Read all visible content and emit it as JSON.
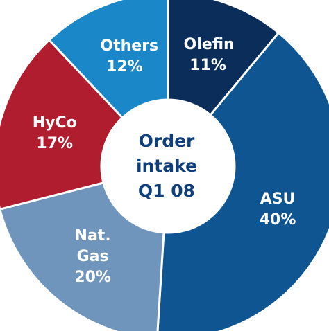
{
  "chart_data": {
    "type": "donut",
    "title": "Order intake Q1 08",
    "categories": [
      "Olefin",
      "ASU",
      "Nat. Gas",
      "HyCo",
      "Others"
    ],
    "values": [
      11,
      40,
      20,
      17,
      12
    ],
    "value_labels": [
      "11%",
      "40%",
      "20%",
      "17%",
      "12%"
    ],
    "colors": [
      "#0a2d5a",
      "#0e5592",
      "#6f95bd",
      "#b01d2e",
      "#1a87c8"
    ]
  }
}
